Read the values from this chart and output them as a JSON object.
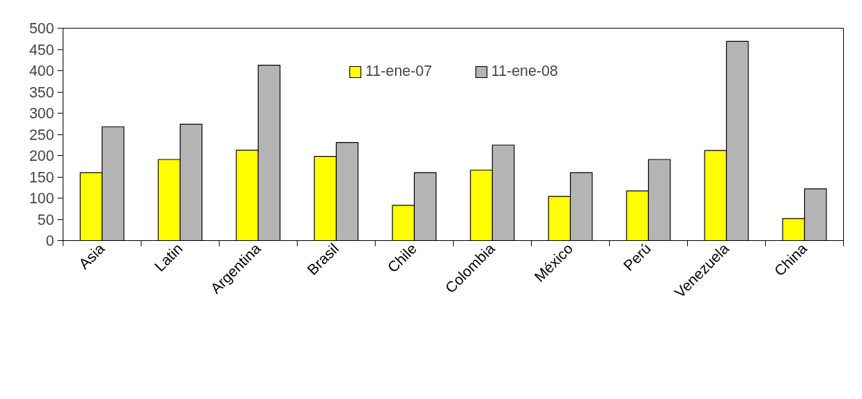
{
  "chart_data": {
    "type": "bar",
    "categories": [
      "Asia",
      "Latin",
      "Argentina",
      "Brasil",
      "Chile",
      "Colombia",
      "México",
      "Perú",
      "Venezuela",
      "China"
    ],
    "series": [
      {
        "name": "11-ene-07",
        "color": "#ffff00",
        "values": [
          160,
          191,
          213,
          198,
          83,
          166,
          104,
          117,
          212,
          52
        ]
      },
      {
        "name": "11-ene-08",
        "color": "#b4b4b4",
        "values": [
          268,
          274,
          413,
          231,
          160,
          225,
          160,
          191,
          469,
          122
        ]
      }
    ],
    "ylim": [
      0,
      500
    ],
    "yticks": [
      0,
      50,
      100,
      150,
      200,
      250,
      300,
      350,
      400,
      450,
      500
    ],
    "grid": false,
    "legend": "top"
  }
}
